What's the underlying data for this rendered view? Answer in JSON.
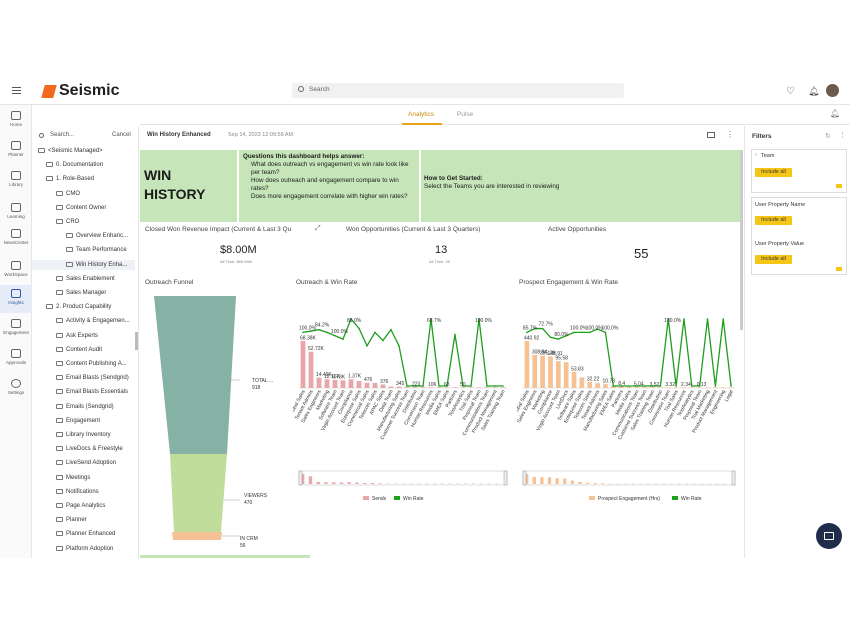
{
  "app": {
    "logo": "Seismic",
    "search_placeholder": "Search"
  },
  "tabs": [
    "Analytics",
    "Pulse"
  ],
  "rail": [
    "Home",
    "Planner",
    "Library",
    "Learning",
    "NewsCenter",
    "WorkSpace",
    "Insights",
    "Engagement",
    "Approvals",
    "Settings"
  ],
  "tree": {
    "search_placeholder": "Search...",
    "cancel": "Cancel",
    "items": [
      "<Seismic Managed>",
      "0. Documentation",
      "1. Role-Based",
      "CMO",
      "Content Owner",
      "CRO",
      "Overview Enhanc...",
      "Team Performance",
      "Win History Enha...",
      "Sales Enablement",
      "Sales Manager",
      "2. Product Capability",
      "Activity & Engagemen...",
      "Ask Experts",
      "Content Audit",
      "Content Publishing A...",
      "Email Blasts (Sendgrid)",
      "Email Blasts Essentials",
      "Emails (Sendgrid)",
      "Engagement",
      "Library Inventory",
      "LiveDocs & Freestyle",
      "LiveSend Adoption",
      "Meetings",
      "Notifications",
      "Page Analytics",
      "Planner",
      "Planner Enhanced",
      "Platform Adoption"
    ]
  },
  "dashboard": {
    "name": "Win History Enhanced",
    "timestamp": "Sep 14, 2023 12:09:58 AM"
  },
  "hero": {
    "title_line1": "WIN",
    "title_line2": "HISTORY",
    "questions_title": "Questions this dashboard helps answer:",
    "q1": "What does outreach vs engagement vs win rate look like per team?",
    "q2": "How does outreach and engagement compare to win rates?",
    "q3": "Does more engagement correlate with higher win rates?",
    "start_title": "How to Get Started:",
    "start_text": "Select the Teams you are interested in reviewing"
  },
  "kpis": [
    {
      "title": "Closed Won Revenue Impact (Current & Last 3 Qu",
      "value": "$8.00M",
      "sub": "All Time: $66.56M"
    },
    {
      "title": "Won Opportunities (Current & Last 3 Quarters)",
      "value": "13",
      "sub": "All Time: 26"
    },
    {
      "title": "Active Opportunities",
      "value": "55",
      "sub": ""
    }
  ],
  "funnel": {
    "title": "Outreach Funnel",
    "l1": "TOTAL ...",
    "v1": "918",
    "l2": "VIEWERS",
    "v2": "470",
    "l3": "IN CRM",
    "v3": "56",
    "colors": [
      "#86b2a6",
      "#c0dd9c",
      "#f6c194"
    ]
  },
  "filters": {
    "title": "Filters",
    "team_label": "Team",
    "include_all": "Include all",
    "prop_name": "User Property Name",
    "prop_value": "User Property Value"
  },
  "chart_data": [
    {
      "type": "bar",
      "title": "Outreach & Win Rate",
      "categories": [
        "Global Sales",
        "Tenant Admins",
        "Sales Engineers",
        "Marketing",
        "Software Team",
        "Virgin Account Team",
        "Compliance",
        "Enterprise Sales",
        "Commercial Sales",
        "Telecom Sales",
        "APAC Sales",
        "Data Team",
        "Manufacturing Sales",
        "Customer Success Team",
        "Distribution",
        "Conversion Team",
        "Human Resources",
        "Media Sales",
        "EMEA Sales",
        "Partners",
        "TestAnalytics",
        "Trial Sales",
        "Proposal Team",
        "Communications Team",
        "Product Management",
        "Sales Training Team"
      ],
      "series": [
        {
          "name": "Sends",
          "color": "#e8a6a8",
          "values": [
            68380,
            52720,
            14490,
            12000,
            11000,
            10500,
            12160,
            9500,
            7000,
            6780,
            4500,
            1370,
            1200,
            476,
            376,
            345,
            250,
            223,
            200,
            106,
            100,
            90,
            80,
            70,
            63,
            50
          ]
        },
        {
          "name": "Win Rate",
          "color": "#1e9e1e",
          "values": [
            0.8,
            0.82,
            0.84,
            0.8,
            0.75,
            0.7,
            1.0,
            0.86,
            0.6,
            0.8,
            0.68,
            0.84,
            0.6,
            0,
            0,
            0,
            1.0,
            0,
            0,
            0.769,
            0,
            0,
            1.0,
            0,
            0,
            0
          ]
        }
      ],
      "bar_labels": [
        "68.38K",
        "52.72K",
        "14.49K",
        "12.16K",
        "6.78K",
        "1.37K",
        "476",
        "376",
        "345",
        "223",
        "106",
        "63",
        "50"
      ],
      "line_labels": [
        "100.0%",
        "84.2%",
        "100.0%",
        "86.0%",
        "68.7%",
        "100.0%",
        "76.9%",
        "100.0%"
      ]
    },
    {
      "type": "bar",
      "title": "Prospect Engagement & Win Rate",
      "categories": [
        "Global Sales",
        "Sales Engineers",
        "Marketing",
        "Compliance",
        "Virgin Account Team",
        "LiveDocs",
        "Software Sales",
        "Enterprise Sales",
        "Telecom Sales",
        "Tenant Admins",
        "Manufacturing Sales",
        "EMEA Sales",
        "Partners",
        "Media Sales",
        "Communications Team",
        "Customer Success Team",
        "Sales Training Team",
        "Distribution",
        "Conversion Team",
        "Trial Sales",
        "Human Resources",
        "TestAnalytics",
        "Proposal Team",
        "Trial Marketing",
        "Product Management",
        "Engineering",
        "Legal"
      ],
      "series": [
        {
          "name": "Prospect Engagement (Hrs)",
          "color": "#f6c194",
          "values": [
            440.92,
            308.84,
            300,
            295.29,
            250,
            240,
            148.91,
            95.58,
            53.83,
            40,
            32.22,
            10.78,
            8.4,
            5.04,
            3.52,
            3.32,
            2.34,
            1.5,
            1.2,
            1.0,
            0.9,
            0.8,
            0.6,
            0.5,
            0.3,
            0.2,
            0.13
          ]
        },
        {
          "name": "Win Rate",
          "color": "#1e9e1e",
          "values": [
            0.8,
            0.857,
            0.857,
            0.727,
            0.7,
            0.75,
            0.8,
            0.8,
            0.8,
            0.85,
            0.8,
            0,
            0,
            0,
            0,
            0,
            0,
            0,
            1.0,
            0,
            1.0,
            0,
            0,
            1.0,
            0,
            1.0,
            0
          ]
        }
      ],
      "bar_labels": [
        "440.92",
        "308.84",
        "295.29",
        "148.91",
        "95.58",
        "53.83",
        "32.22",
        "10.78",
        "8.4",
        "5.04",
        "3.52",
        "3.32",
        "2.34",
        "0.13"
      ],
      "line_labels": [
        "85.7%",
        "72.7%",
        "80.0%",
        "100.0%",
        "100.0%",
        "100.0%",
        "100.0%"
      ]
    }
  ]
}
